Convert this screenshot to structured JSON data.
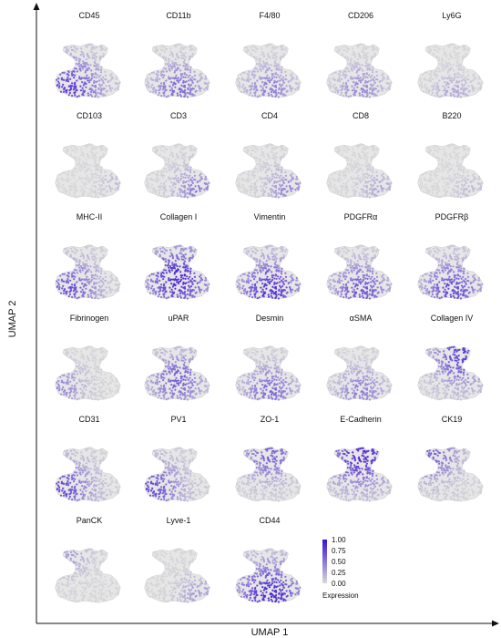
{
  "chart_data": {
    "type": "scatter",
    "subtype": "umap-feature-grid",
    "xlabel": "UMAP 1",
    "ylabel": "UMAP 2",
    "grid": false,
    "colorbar": {
      "label": "Expression",
      "range": [
        0.0,
        1.0
      ],
      "ticks": [
        "1.00",
        "0.75",
        "0.50",
        "0.25",
        "0.00"
      ],
      "color_low": "#d9d9d9",
      "color_high": "#3a12d6"
    },
    "panels": [
      {
        "marker": "CD45",
        "hotspot": "bottom-left",
        "intensity": 0.75
      },
      {
        "marker": "CD11b",
        "hotspot": "bottom",
        "intensity": 0.55
      },
      {
        "marker": "F4/80",
        "hotspot": "bottom",
        "intensity": 0.45
      },
      {
        "marker": "CD206",
        "hotspot": "bottom",
        "intensity": 0.4
      },
      {
        "marker": "Ly6G",
        "hotspot": "bottom-center",
        "intensity": 0.25
      },
      {
        "marker": "CD103",
        "hotspot": "right-edge",
        "intensity": 0.15
      },
      {
        "marker": "CD3",
        "hotspot": "bottom-right",
        "intensity": 0.45
      },
      {
        "marker": "CD4",
        "hotspot": "bottom-right",
        "intensity": 0.4
      },
      {
        "marker": "CD8",
        "hotspot": "bottom-right",
        "intensity": 0.25
      },
      {
        "marker": "B220",
        "hotspot": "bottom-right",
        "intensity": 0.15
      },
      {
        "marker": "MHC-II",
        "hotspot": "bottom-left",
        "intensity": 0.65
      },
      {
        "marker": "Collagen I",
        "hotspot": "center",
        "intensity": 0.85
      },
      {
        "marker": "Vimentin",
        "hotspot": "bottom",
        "intensity": 0.8
      },
      {
        "marker": "PDGFRα",
        "hotspot": "bottom",
        "intensity": 0.65
      },
      {
        "marker": "PDGFRβ",
        "hotspot": "bottom",
        "intensity": 0.7
      },
      {
        "marker": "Fibrinogen",
        "hotspot": "left",
        "intensity": 0.4
      },
      {
        "marker": "uPAR",
        "hotspot": "center",
        "intensity": 0.6
      },
      {
        "marker": "Desmin",
        "hotspot": "bottom",
        "intensity": 0.55
      },
      {
        "marker": "αSMA",
        "hotspot": "bottom",
        "intensity": 0.45
      },
      {
        "marker": "Collagen IV",
        "hotspot": "top-right",
        "intensity": 0.75
      },
      {
        "marker": "CD31",
        "hotspot": "left",
        "intensity": 0.7
      },
      {
        "marker": "PV1",
        "hotspot": "left",
        "intensity": 0.7
      },
      {
        "marker": "ZO-1",
        "hotspot": "top",
        "intensity": 0.6
      },
      {
        "marker": "E-Cadherin",
        "hotspot": "top",
        "intensity": 0.85
      },
      {
        "marker": "CK19",
        "hotspot": "top-left",
        "intensity": 0.6
      },
      {
        "marker": "PanCK",
        "hotspot": "top-left",
        "intensity": 0.3
      },
      {
        "marker": "Lyve-1",
        "hotspot": "bottom-right",
        "intensity": 0.3
      },
      {
        "marker": "CD44",
        "hotspot": "bottom",
        "intensity": 0.85
      }
    ]
  }
}
